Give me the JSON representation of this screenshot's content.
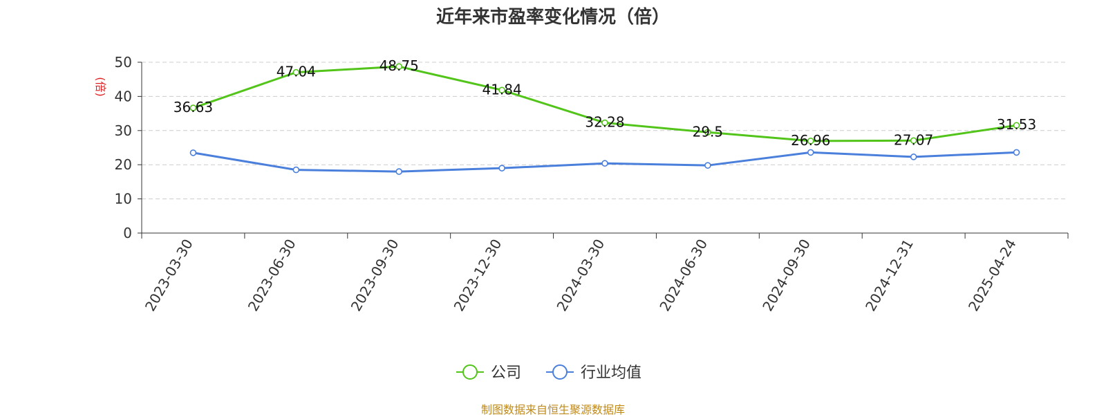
{
  "colors": {
    "company": "#52c41a",
    "industry": "#4a7fdc",
    "ylabel": "#e02020",
    "source": "#c08a1a",
    "text": "#333333",
    "grid": "#cccccc"
  },
  "source_note": "制图数据来自恒生聚源数据库",
  "chart_data": {
    "type": "line",
    "title": "近年来市盈率变化情况（倍）",
    "ylabel": "(倍)",
    "xlabel": "",
    "categories": [
      "2023-03-30",
      "2023-06-30",
      "2023-09-30",
      "2023-12-30",
      "2024-03-30",
      "2024-06-30",
      "2024-09-30",
      "2024-12-31",
      "2025-04-24"
    ],
    "ylim": [
      0,
      50
    ],
    "yticks": [
      0,
      10,
      20,
      30,
      40,
      50
    ],
    "grid": true,
    "legend_position": "bottom-center",
    "series": [
      {
        "name": "公司",
        "values": [
          36.63,
          47.04,
          48.75,
          41.84,
          32.28,
          29.5,
          26.96,
          27.07,
          31.53
        ],
        "labels": [
          "36.63",
          "47.04",
          "48.75",
          "41.84",
          "32.28",
          "29.5",
          "26.96",
          "27.07",
          "31.53"
        ],
        "color_key": "company"
      },
      {
        "name": "行业均值",
        "values": [
          23.5,
          18.5,
          18.0,
          19.0,
          20.4,
          19.8,
          23.6,
          22.3,
          23.6
        ],
        "color_key": "industry"
      }
    ]
  }
}
